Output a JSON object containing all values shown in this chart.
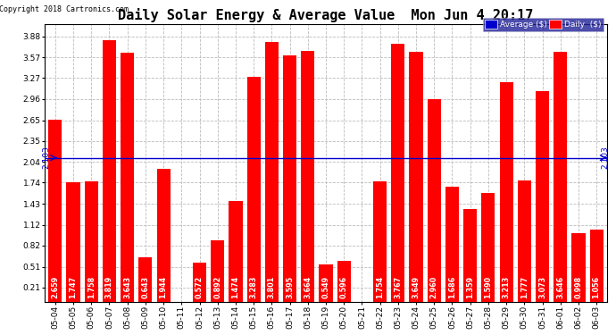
{
  "title": "Daily Solar Energy & Average Value  Mon Jun 4 20:17",
  "copyright": "Copyright 2018 Cartronics.com",
  "average_value": 2.103,
  "categories": [
    "05-04",
    "05-05",
    "05-06",
    "05-07",
    "05-08",
    "05-09",
    "05-10",
    "05-11",
    "05-12",
    "05-13",
    "05-14",
    "05-15",
    "05-16",
    "05-17",
    "05-18",
    "05-19",
    "05-20",
    "05-21",
    "05-22",
    "05-23",
    "05-24",
    "05-25",
    "05-26",
    "05-27",
    "05-28",
    "05-29",
    "05-30",
    "05-31",
    "06-01",
    "06-02",
    "06-03"
  ],
  "values": [
    2.659,
    1.747,
    1.758,
    3.819,
    3.643,
    0.643,
    1.944,
    0.0,
    0.572,
    0.892,
    1.474,
    3.283,
    3.801,
    3.595,
    3.664,
    0.549,
    0.596,
    0.0,
    1.754,
    3.767,
    3.649,
    2.96,
    1.686,
    1.359,
    1.59,
    3.213,
    1.777,
    3.073,
    3.646,
    0.998,
    1.056
  ],
  "bar_color": "#ff0000",
  "avg_line_color": "#0000cc",
  "background_color": "#ffffff",
  "plot_bg_color": "#ffffff",
  "grid_color": "#bbbbbb",
  "yticks": [
    0.21,
    0.51,
    0.82,
    1.12,
    1.43,
    1.74,
    2.04,
    2.35,
    2.65,
    2.96,
    3.27,
    3.57,
    3.88
  ],
  "title_fontsize": 11,
  "tick_fontsize": 6.5,
  "value_fontsize": 5.8,
  "bar_width": 0.75
}
